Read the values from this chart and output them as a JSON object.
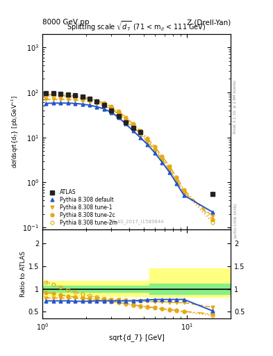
{
  "title_left": "8000 GeV pp",
  "title_right": "Z (Drell-Yan)",
  "plot_title": "Splitting scale $\\sqrt{\\mathregular{d_7}}$ (71 < m$_{ll}$ < 111 GeV)",
  "ylabel_main": "d$\\sigma$/dsqrt{d$_7$} [pb,GeV$^{-1}$]",
  "ylabel_ratio": "Ratio to ATLAS",
  "xlabel": "sqrt{d_7} [GeV]",
  "watermark": "ATLAS_2017_I1589844",
  "right_label1": "Rivet 3.1.10; ≥ 2.8M events",
  "right_label2": "[arXiv:1306.3436]",
  "x_data": [
    1.06,
    1.19,
    1.34,
    1.5,
    1.68,
    1.89,
    2.12,
    2.38,
    2.67,
    3.0,
    3.36,
    3.77,
    4.24,
    4.75,
    5.33,
    6.0,
    6.73,
    7.55,
    8.47,
    9.51,
    15.0
  ],
  "atlas_y": [
    95,
    95,
    93,
    90,
    85,
    80,
    72,
    62,
    52,
    40,
    30,
    22,
    16,
    13,
    null,
    null,
    null,
    null,
    null,
    null,
    0.55
  ],
  "pythia_default_y": [
    57,
    58,
    58,
    58,
    57,
    55,
    52,
    48,
    43,
    36,
    28,
    20,
    14,
    10,
    7.0,
    4.5,
    2.8,
    1.7,
    0.95,
    0.52,
    0.22
  ],
  "pythia_tune1_y": [
    70,
    70,
    70,
    69,
    68,
    65,
    62,
    57,
    51,
    43,
    33,
    24,
    17,
    12,
    8.0,
    5.2,
    3.2,
    1.9,
    1.1,
    0.6,
    0.18
  ],
  "pythia_tune2c_y": [
    90,
    90,
    88,
    86,
    83,
    79,
    73,
    66,
    58,
    49,
    38,
    28,
    20,
    14,
    9.5,
    6.2,
    3.8,
    2.3,
    1.3,
    0.7,
    0.15
  ],
  "pythia_tune2m_y": [
    83,
    83,
    82,
    80,
    77,
    73,
    68,
    62,
    54,
    45,
    35,
    26,
    18,
    13,
    8.5,
    5.5,
    3.4,
    2.0,
    1.1,
    0.62,
    0.13
  ],
  "ratio_x": [
    1.06,
    1.19,
    1.34,
    1.5,
    1.68,
    1.89,
    2.12,
    2.38,
    2.67,
    3.0,
    3.36,
    3.77,
    4.24,
    4.75,
    5.33,
    6.0,
    6.73,
    7.55,
    8.47,
    9.51,
    15.0
  ],
  "ratio_default": [
    0.74,
    0.74,
    0.74,
    0.74,
    0.73,
    0.73,
    0.73,
    0.74,
    0.74,
    0.74,
    0.74,
    0.74,
    0.74,
    0.75,
    0.76,
    0.77,
    0.77,
    0.77,
    0.77,
    0.77,
    0.52
  ],
  "ratio_tune1": [
    0.8,
    0.8,
    0.8,
    0.79,
    0.79,
    0.79,
    0.79,
    0.79,
    0.78,
    0.77,
    0.76,
    0.75,
    0.74,
    0.73,
    0.73,
    0.72,
    0.72,
    0.71,
    0.7,
    0.7,
    0.6
  ],
  "ratio_tune2c": [
    0.92,
    0.9,
    0.87,
    0.84,
    0.82,
    0.8,
    0.78,
    0.76,
    0.74,
    0.72,
    0.7,
    0.68,
    0.65,
    0.63,
    0.61,
    0.59,
    0.57,
    0.55,
    0.53,
    0.51,
    0.45
  ],
  "ratio_tune2m": [
    1.15,
    1.1,
    1.04,
    0.98,
    0.93,
    0.89,
    0.85,
    0.82,
    0.78,
    0.75,
    0.71,
    0.68,
    0.65,
    0.62,
    0.6,
    0.58,
    0.56,
    0.54,
    0.52,
    0.5,
    0.42
  ],
  "color_atlas": "#222222",
  "color_default": "#2255cc",
  "color_tune": "#e6a817",
  "xlim": [
    1.0,
    20.0
  ],
  "ylim_main": [
    0.09,
    2000.0
  ],
  "ylim_ratio": [
    0.35,
    2.3
  ]
}
